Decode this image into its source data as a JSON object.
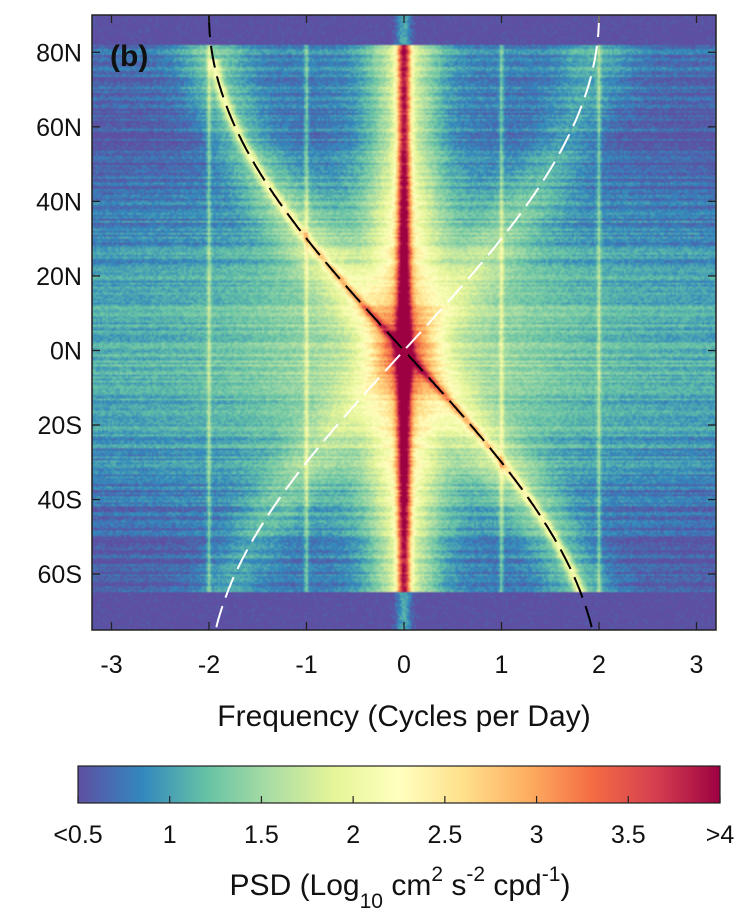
{
  "chart_data": {
    "type": "heatmap",
    "panel_label": "(b)",
    "xlabel": "Frequency (Cycles per Day)",
    "x_range": [
      -3.2,
      3.2
    ],
    "y_range": [
      -75,
      90
    ],
    "x_ticks": [
      {
        "value": -3,
        "label": "-3"
      },
      {
        "value": -2,
        "label": "-2"
      },
      {
        "value": -1,
        "label": "-1"
      },
      {
        "value": 0,
        "label": "0"
      },
      {
        "value": 1,
        "label": "1"
      },
      {
        "value": 2,
        "label": "2"
      },
      {
        "value": 3,
        "label": "3"
      }
    ],
    "y_ticks": [
      {
        "value": 80,
        "label": "80N"
      },
      {
        "value": 60,
        "label": "60N"
      },
      {
        "value": 40,
        "label": "40N"
      },
      {
        "value": 20,
        "label": "20N"
      },
      {
        "value": 0,
        "label": "0N"
      },
      {
        "value": -20,
        "label": "20S"
      },
      {
        "value": -40,
        "label": "40S"
      },
      {
        "value": -60,
        "label": "60S"
      }
    ],
    "colorbar": {
      "range": [
        0.5,
        4
      ],
      "ticks": [
        {
          "value": 0.5,
          "label": "<0.5"
        },
        {
          "value": 1,
          "label": "1"
        },
        {
          "value": 1.5,
          "label": "1.5"
        },
        {
          "value": 2,
          "label": "2"
        },
        {
          "value": 2.5,
          "label": "2.5"
        },
        {
          "value": 3,
          "label": "3"
        },
        {
          "value": 3.5,
          "label": "3.5"
        },
        {
          "value": 4,
          "label": ">4"
        }
      ],
      "label_main": "PSD (Log",
      "label_sub": "10",
      "label_unit_1": " cm",
      "label_sup_1": "2",
      "label_unit_2": " s",
      "label_sup_2": "-2",
      "label_unit_3": " cpd",
      "label_sup_3": "-1",
      "label_close": ")",
      "colormap": [
        "#5e4fa2",
        "#3288bd",
        "#66c2a5",
        "#abdda4",
        "#e6f598",
        "#ffffbf",
        "#fee08b",
        "#fdae61",
        "#f46d43",
        "#d53e4f",
        "#9e0142"
      ]
    },
    "curves": [
      {
        "style": "black-dashed",
        "description_color": "#000000",
        "formula": "-2 sin(latitude) cpd"
      },
      {
        "style": "white-dashed",
        "description_color": "#ffffff",
        "formula": "+2 sin(latitude) cpd"
      }
    ],
    "spectral_features": {
      "background_level": 1.0,
      "tidal_lines_cpd": [
        -2,
        -1,
        1,
        2
      ],
      "zero_frequency_level": 3.6,
      "inertial_peak_level": 2.9,
      "low_signal_bands_lat": [
        [
          82,
          90
        ],
        [
          -75,
          -65
        ]
      ]
    }
  }
}
